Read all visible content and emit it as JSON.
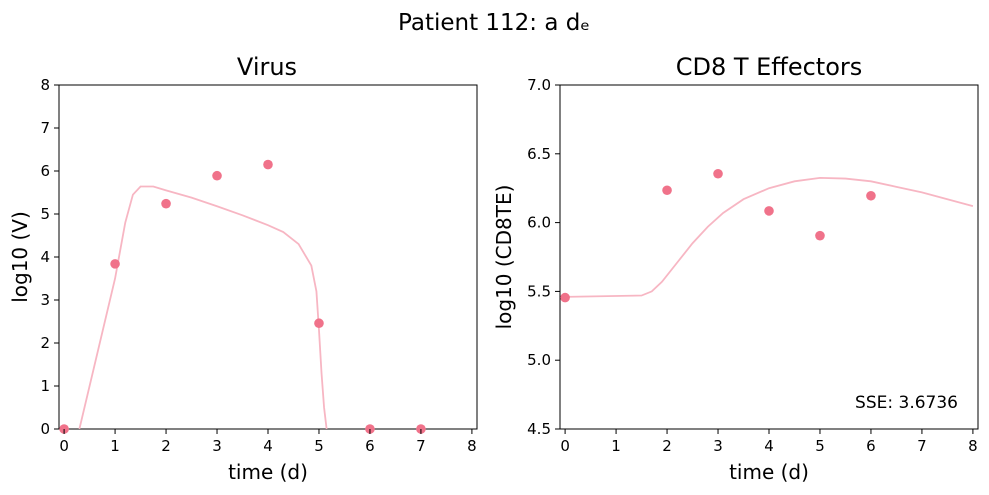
{
  "figure": {
    "suptitle": "Patient 112: a dₑ"
  },
  "chart_data": [
    {
      "type": "scatter",
      "title": "Virus",
      "xlabel": "time (d)",
      "ylabel": "log10 (V)",
      "xlim": [
        -0.1,
        8.1
      ],
      "ylim": [
        0,
        8
      ],
      "xticks": [
        "0",
        "1",
        "2",
        "3",
        "4",
        "5",
        "6",
        "7",
        "8"
      ],
      "yticks": [
        "0",
        "1",
        "2",
        "3",
        "4",
        "5",
        "6",
        "7",
        "8"
      ],
      "series": [
        {
          "kind": "scatter",
          "color": "#f0728a",
          "x": [
            0,
            1,
            2,
            3,
            4,
            5,
            6,
            7
          ],
          "y": [
            0,
            3.84,
            5.24,
            5.89,
            6.15,
            2.46,
            0,
            0
          ]
        },
        {
          "kind": "line",
          "color": "#f7b6c3",
          "x": [
            0.3,
            1.0,
            1.2,
            1.35,
            1.5,
            1.75,
            2.0,
            2.5,
            3.0,
            3.5,
            4.0,
            4.3,
            4.6,
            4.85,
            4.95,
            5.0,
            5.05,
            5.1,
            5.15
          ],
          "y": [
            0,
            3.5,
            4.8,
            5.45,
            5.64,
            5.64,
            5.55,
            5.38,
            5.18,
            4.97,
            4.74,
            4.58,
            4.3,
            3.8,
            3.2,
            2.3,
            1.3,
            0.5,
            0
          ]
        }
      ],
      "grid": false
    },
    {
      "type": "scatter",
      "title": "CD8 T Effectors",
      "xlabel": "time (d)",
      "ylabel": "log10 (CD8TE)",
      "xlim": [
        -0.1,
        8.1
      ],
      "ylim": [
        4.5,
        7.0
      ],
      "xticks": [
        "0",
        "1",
        "2",
        "3",
        "4",
        "5",
        "6",
        "7",
        "8"
      ],
      "yticks": [
        "4.5",
        "5.0",
        "5.5",
        "6.0",
        "6.5",
        "7.0"
      ],
      "series": [
        {
          "kind": "scatter",
          "color": "#f0728a",
          "x": [
            0,
            2,
            3,
            4,
            5,
            6
          ],
          "y": [
            5.455,
            6.235,
            6.355,
            6.085,
            5.905,
            6.195
          ]
        },
        {
          "kind": "line",
          "color": "#f7b6c3",
          "x": [
            0,
            1.5,
            1.7,
            1.9,
            2.2,
            2.5,
            2.8,
            3.1,
            3.5,
            4.0,
            4.5,
            5.0,
            5.5,
            6.0,
            6.5,
            7.0,
            7.5,
            8.0
          ],
          "y": [
            5.46,
            5.47,
            5.5,
            5.57,
            5.71,
            5.85,
            5.97,
            6.07,
            6.17,
            6.25,
            6.3,
            6.325,
            6.32,
            6.3,
            6.26,
            6.22,
            6.17,
            6.12
          ]
        }
      ],
      "annotation": "SSE: 3.6736",
      "grid": false
    }
  ]
}
